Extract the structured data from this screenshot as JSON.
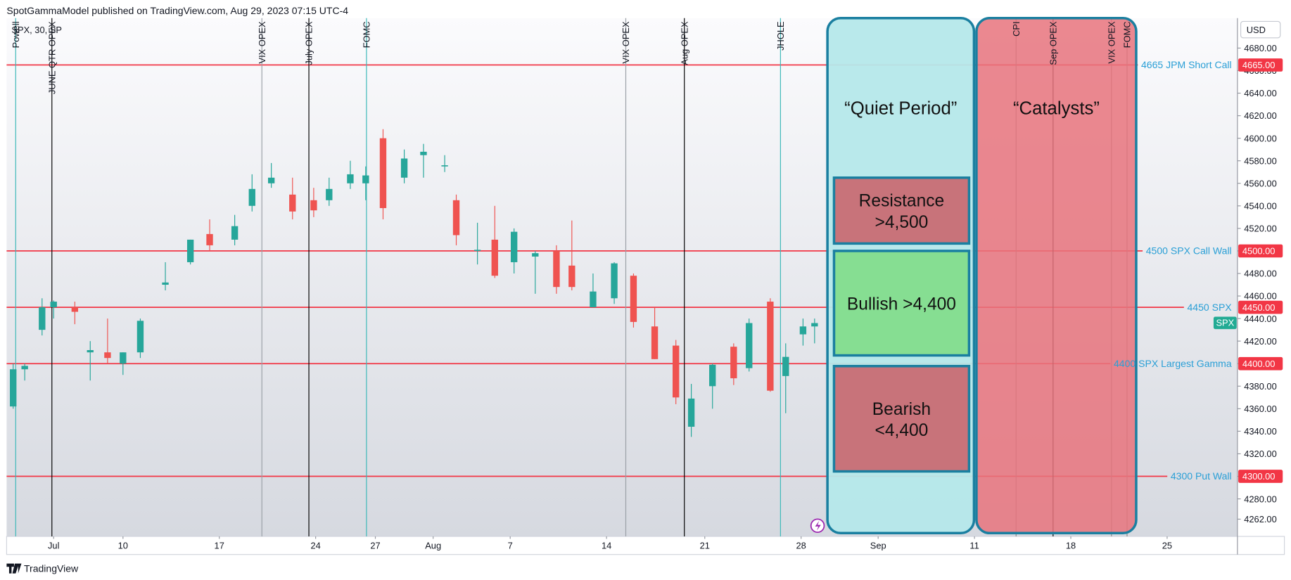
{
  "header": {
    "publisher": "SpotGammaModel published on TradingView.com, Aug 29, 2023 07:15 UTC-4",
    "symbol": "SPX, 30, SP",
    "currency": "USD",
    "footer": "TradingView"
  },
  "chart_data": {
    "type": "candlestick",
    "xlim": [
      -2.44,
      61.45
    ],
    "xticks": [
      {
        "value": 0,
        "label": "Jul"
      },
      {
        "value": 3.6,
        "label": "10"
      },
      {
        "value": 8.6,
        "label": "17"
      },
      {
        "value": 13.6,
        "label": "24"
      },
      {
        "value": 16.7,
        "label": "27"
      },
      {
        "value": 19.7,
        "label": "Aug"
      },
      {
        "value": 23.7,
        "label": "7"
      },
      {
        "value": 28.7,
        "label": "14"
      },
      {
        "value": 33.8,
        "label": "21"
      },
      {
        "value": 38.8,
        "label": "28"
      },
      {
        "value": 42.8,
        "label": "Sep"
      },
      {
        "value": 47.8,
        "label": "11"
      },
      {
        "value": 52.8,
        "label": "18"
      },
      {
        "value": 57.8,
        "label": "25"
      }
    ],
    "ylim": [
      4246.7,
      4706.6
    ],
    "yticks": [
      {
        "value": 4262,
        "label": "4262.00"
      },
      {
        "value": 4280,
        "label": "4280.00"
      },
      {
        "value": 4300,
        "label": "4300.00"
      },
      {
        "value": 4320,
        "label": "4320.00"
      },
      {
        "value": 4340,
        "label": "4340.00"
      },
      {
        "value": 4360,
        "label": "4360.00"
      },
      {
        "value": 4380,
        "label": "4380.00"
      },
      {
        "value": 4400,
        "label": "4400.00"
      },
      {
        "value": 4420,
        "label": "4420.00"
      },
      {
        "value": 4440,
        "label": "4440.00"
      },
      {
        "value": 4460,
        "label": "4460.00"
      },
      {
        "value": 4480,
        "label": "4480.00"
      },
      {
        "value": 4500,
        "label": "4500.00"
      },
      {
        "value": 4520,
        "label": "4520.00"
      },
      {
        "value": 4540,
        "label": "4540.00"
      },
      {
        "value": 4560,
        "label": "4560.00"
      },
      {
        "value": 4580,
        "label": "4580.00"
      },
      {
        "value": 4600,
        "label": "4600.00"
      },
      {
        "value": 4620,
        "label": "4620.00"
      },
      {
        "value": 4640,
        "label": "4640.00"
      },
      {
        "value": 4660,
        "label": "4660.00"
      },
      {
        "value": 4680,
        "label": "4680.00"
      }
    ],
    "up_color": "#26a69a",
    "down_color": "#ef5350",
    "series": [
      {
        "name": "SPX",
        "color": "#22ab94",
        "x": [
          -2.1,
          -1.5,
          -0.6,
          0,
          1.1,
          1.9,
          2.8,
          3.6,
          4.5,
          5.8,
          7.1,
          8.1,
          9.4,
          10.3,
          11.3,
          12.4,
          13.5,
          14.3,
          15.4,
          16.2,
          17.1,
          18.2,
          19.2,
          20.3,
          20.9,
          22.0,
          22.9,
          23.9,
          25.0,
          26.1,
          26.9,
          28.0,
          29.1,
          30.1,
          31.2,
          32.3,
          33.1,
          34.2,
          35.3,
          36.1,
          37.2,
          38.0,
          38.9,
          39.5
        ],
        "open": [
          4362,
          4395,
          4430,
          4450,
          4450,
          4410,
          4410,
          4400,
          4410,
          4470,
          4490,
          4515,
          4510,
          4540,
          4560,
          4550,
          4545,
          4545,
          4560,
          4560,
          4600,
          4565,
          4585,
          4575,
          4545,
          4500,
          4510,
          4490,
          4495,
          4500,
          4487,
          4450,
          4458,
          4478,
          4433,
          4416,
          4344,
          4380,
          4415,
          4396,
          4455,
          4389,
          4426,
          4433
        ],
        "high": [
          4400,
          4400,
          4458,
          4456,
          4455,
          4420,
          4440,
          4410,
          4440,
          4490,
          4510,
          4528,
          4532,
          4568,
          4578,
          4565,
          4556,
          4565,
          4580,
          4575,
          4608,
          4590,
          4595,
          4585,
          4550,
          4525,
          4540,
          4520,
          4500,
          4505,
          4527,
          4480,
          4490,
          4480,
          4450,
          4421,
          4382,
          4400,
          4418,
          4440,
          4458,
          4418,
          4440,
          4440
        ],
        "low": [
          4360,
          4385,
          4425,
          4440,
          4435,
          4385,
          4400,
          4390,
          4405,
          4465,
          4488,
          4500,
          4505,
          4535,
          4556,
          4528,
          4530,
          4540,
          4555,
          4545,
          4528,
          4560,
          4565,
          4570,
          4505,
          4488,
          4476,
          4480,
          4462,
          4462,
          4465,
          4450,
          4453,
          4432,
          4404,
          4364,
          4335,
          4360,
          4381,
          4393,
          4375,
          4356,
          4416,
          4418
        ],
        "close": [
          4395,
          4398,
          4450,
          4455,
          4446,
          4412,
          4405,
          4410,
          4438,
          4472,
          4510,
          4505,
          4522,
          4555,
          4565,
          4535,
          4536,
          4555,
          4568,
          4567,
          4538,
          4582,
          4588,
          4576,
          4514,
          4501,
          4478,
          4517,
          4498,
          4468,
          4468,
          4464,
          4489,
          4437,
          4404,
          4370,
          4369,
          4399,
          4387,
          4436,
          4376,
          4406,
          4433,
          4436
        ]
      }
    ],
    "levels": [
      {
        "value": 4665,
        "label": "4665 JPM Short Call",
        "value_label": "4665.00"
      },
      {
        "value": 4500,
        "label": "4500 SPX Call Wall",
        "value_label": "4500.00"
      },
      {
        "value": 4450,
        "label": "4450 SPX",
        "value_label": "4450.00"
      },
      {
        "value": 4400,
        "label": "4400 SPX Largest Gamma",
        "value_label": "4400.00"
      },
      {
        "value": 4300,
        "label": "4300 Put Wall",
        "value_label": "4300.00"
      }
    ],
    "events": [
      {
        "label": "Powell",
        "x": -1.97,
        "color": "#3bb8b8"
      },
      {
        "label": "JUNE QTR OPEX",
        "x": -0.09,
        "color": "#000000"
      },
      {
        "label": "VIX OPEX",
        "x": 10.81,
        "color": "#9aa0a6"
      },
      {
        "label": "July OPEX",
        "x": 13.25,
        "color": "#000000"
      },
      {
        "label": "FOMC",
        "x": 16.24,
        "color": "#3bb8b8"
      },
      {
        "label": "VIX OPEX",
        "x": 29.7,
        "color": "#9aa0a6"
      },
      {
        "label": "Aug OPEX",
        "x": 32.74,
        "color": "#000000"
      },
      {
        "label": "JHOLE",
        "x": 37.73,
        "color": "#3bb8b8"
      },
      {
        "label": "CPI",
        "x": 49.96,
        "color": "#8a8a8a"
      },
      {
        "label": "Sep OPEX",
        "x": 51.88,
        "color": "#000000"
      },
      {
        "label": "VIX OPEX",
        "x": 54.91,
        "color": "#8a8a8a"
      },
      {
        "label": "FOMC",
        "x": 55.72,
        "color": "#8a8a8a"
      }
    ],
    "zones": [
      {
        "label": "“Quiet Period”"
      },
      {
        "label": "“Catalysts”"
      }
    ],
    "boxes": [
      {
        "lines": [
          "Resistance",
          ">4,500"
        ]
      },
      {
        "lines": [
          "Bullish >4,400"
        ]
      },
      {
        "lines": [
          "Bearish",
          "<4,400"
        ]
      }
    ]
  }
}
